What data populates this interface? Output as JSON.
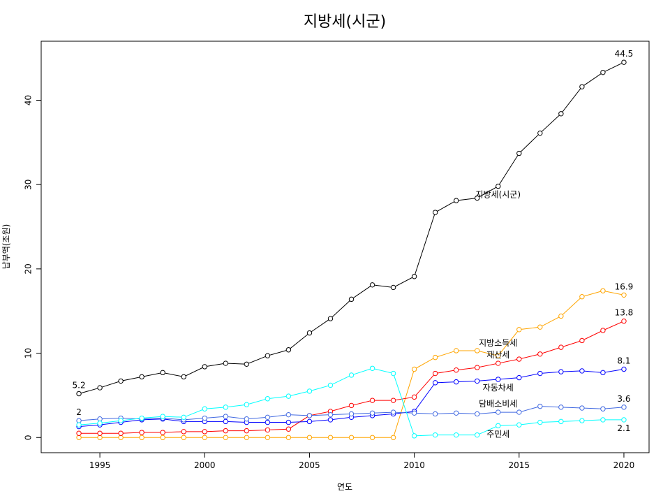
{
  "chart_data": {
    "type": "line",
    "title": "지방세(시군)",
    "xlabel": "연도",
    "ylabel": "납부액(조원)",
    "xlim": [
      1992.2,
      2021.2
    ],
    "ylim": [
      -1.8,
      47.0
    ],
    "x_ticks": [
      1995,
      2000,
      2005,
      2010,
      2015,
      2020
    ],
    "x_tick_labels": [
      "1995",
      "2000",
      "2005",
      "2010",
      "2015",
      "2020"
    ],
    "y_ticks": [
      0,
      10,
      20,
      30,
      40
    ],
    "y_tick_labels": [
      "0",
      "10",
      "20",
      "30",
      "40"
    ],
    "x": [
      1994,
      1995,
      1996,
      1997,
      1998,
      1999,
      2000,
      2001,
      2002,
      2003,
      2004,
      2005,
      2006,
      2007,
      2008,
      2009,
      2010,
      2011,
      2012,
      2013,
      2014,
      2015,
      2016,
      2017,
      2018,
      2019,
      2020
    ],
    "series": [
      {
        "name": "지방세(시군)",
        "color": "#000000",
        "values": [
          5.2,
          5.9,
          6.7,
          7.2,
          7.7,
          7.2,
          8.4,
          8.8,
          8.7,
          9.7,
          10.4,
          12.4,
          14.1,
          16.4,
          18.1,
          17.8,
          19.1,
          26.7,
          28.1,
          28.4,
          29.8,
          33.7,
          36.1,
          38.4,
          41.6,
          43.3,
          44.5
        ]
      },
      {
        "name": "지방소득세",
        "color": "#ffa500",
        "values": [
          0,
          0,
          0,
          0,
          0,
          0,
          0,
          0,
          0,
          0,
          0,
          0,
          0,
          0,
          0,
          0,
          8.1,
          9.5,
          10.3,
          10.3,
          9.7,
          12.8,
          13.1,
          14.4,
          16.7,
          17.4,
          16.9
        ]
      },
      {
        "name": "재산세",
        "color": "#ff0000",
        "values": [
          0.5,
          0.5,
          0.5,
          0.6,
          0.6,
          0.7,
          0.7,
          0.8,
          0.8,
          0.9,
          1.0,
          2.6,
          3.1,
          3.8,
          4.4,
          4.4,
          4.8,
          7.6,
          8.0,
          8.3,
          8.8,
          9.3,
          9.9,
          10.7,
          11.5,
          12.7,
          13.8
        ]
      },
      {
        "name": "자동차세",
        "color": "#0000ff",
        "values": [
          1.3,
          1.5,
          1.8,
          2.1,
          2.2,
          1.9,
          1.9,
          1.9,
          1.8,
          1.8,
          1.8,
          1.9,
          2.1,
          2.4,
          2.6,
          2.8,
          3.1,
          6.5,
          6.6,
          6.7,
          6.9,
          7.1,
          7.6,
          7.8,
          7.9,
          7.7,
          8.1
        ]
      },
      {
        "name": "담배소비세",
        "color": "#4169e1",
        "values": [
          2.0,
          2.2,
          2.3,
          2.2,
          2.3,
          2.1,
          2.3,
          2.5,
          2.2,
          2.4,
          2.7,
          2.6,
          2.7,
          2.8,
          2.9,
          3.0,
          2.9,
          2.8,
          2.9,
          2.8,
          3.0,
          3.0,
          3.7,
          3.6,
          3.5,
          3.4,
          3.6
        ]
      },
      {
        "name": "주민세",
        "color": "#00ffff",
        "values": [
          1.5,
          1.7,
          2.0,
          2.3,
          2.5,
          2.4,
          3.4,
          3.6,
          3.9,
          4.6,
          4.9,
          5.5,
          6.2,
          7.4,
          8.2,
          7.6,
          0.2,
          0.3,
          0.3,
          0.3,
          1.4,
          1.5,
          1.8,
          1.9,
          2.0,
          2.1,
          2.1
        ]
      }
    ],
    "annotations": [
      {
        "text": "5.2",
        "x": 1994,
        "y": 5.2,
        "pos": "above"
      },
      {
        "text": "2",
        "x": 1994,
        "y": 2.0,
        "pos": "above"
      },
      {
        "text": "44.5",
        "x": 2020,
        "y": 44.5,
        "pos": "above"
      },
      {
        "text": "16.9",
        "x": 2020,
        "y": 16.9,
        "pos": "above"
      },
      {
        "text": "13.8",
        "x": 2020,
        "y": 13.8,
        "pos": "above"
      },
      {
        "text": "8.1",
        "x": 2020,
        "y": 8.1,
        "pos": "above"
      },
      {
        "text": "3.6",
        "x": 2020,
        "y": 3.6,
        "pos": "above"
      },
      {
        "text": "2.1",
        "x": 2020,
        "y": 2.1,
        "pos": "below"
      },
      {
        "text": "지방세(시군)",
        "x": 2014,
        "y": 29.8,
        "pos": "below"
      },
      {
        "text": "지방소득세",
        "x": 2014,
        "y": 9.7,
        "pos": "top-high"
      },
      {
        "text": "재산세",
        "x": 2014,
        "y": 8.8,
        "pos": "above"
      },
      {
        "text": "자동차세",
        "x": 2014,
        "y": 6.9,
        "pos": "below"
      },
      {
        "text": "담배소비세",
        "x": 2014,
        "y": 3.0,
        "pos": "above"
      },
      {
        "text": "주민세",
        "x": 2014,
        "y": 1.4,
        "pos": "below"
      }
    ]
  }
}
